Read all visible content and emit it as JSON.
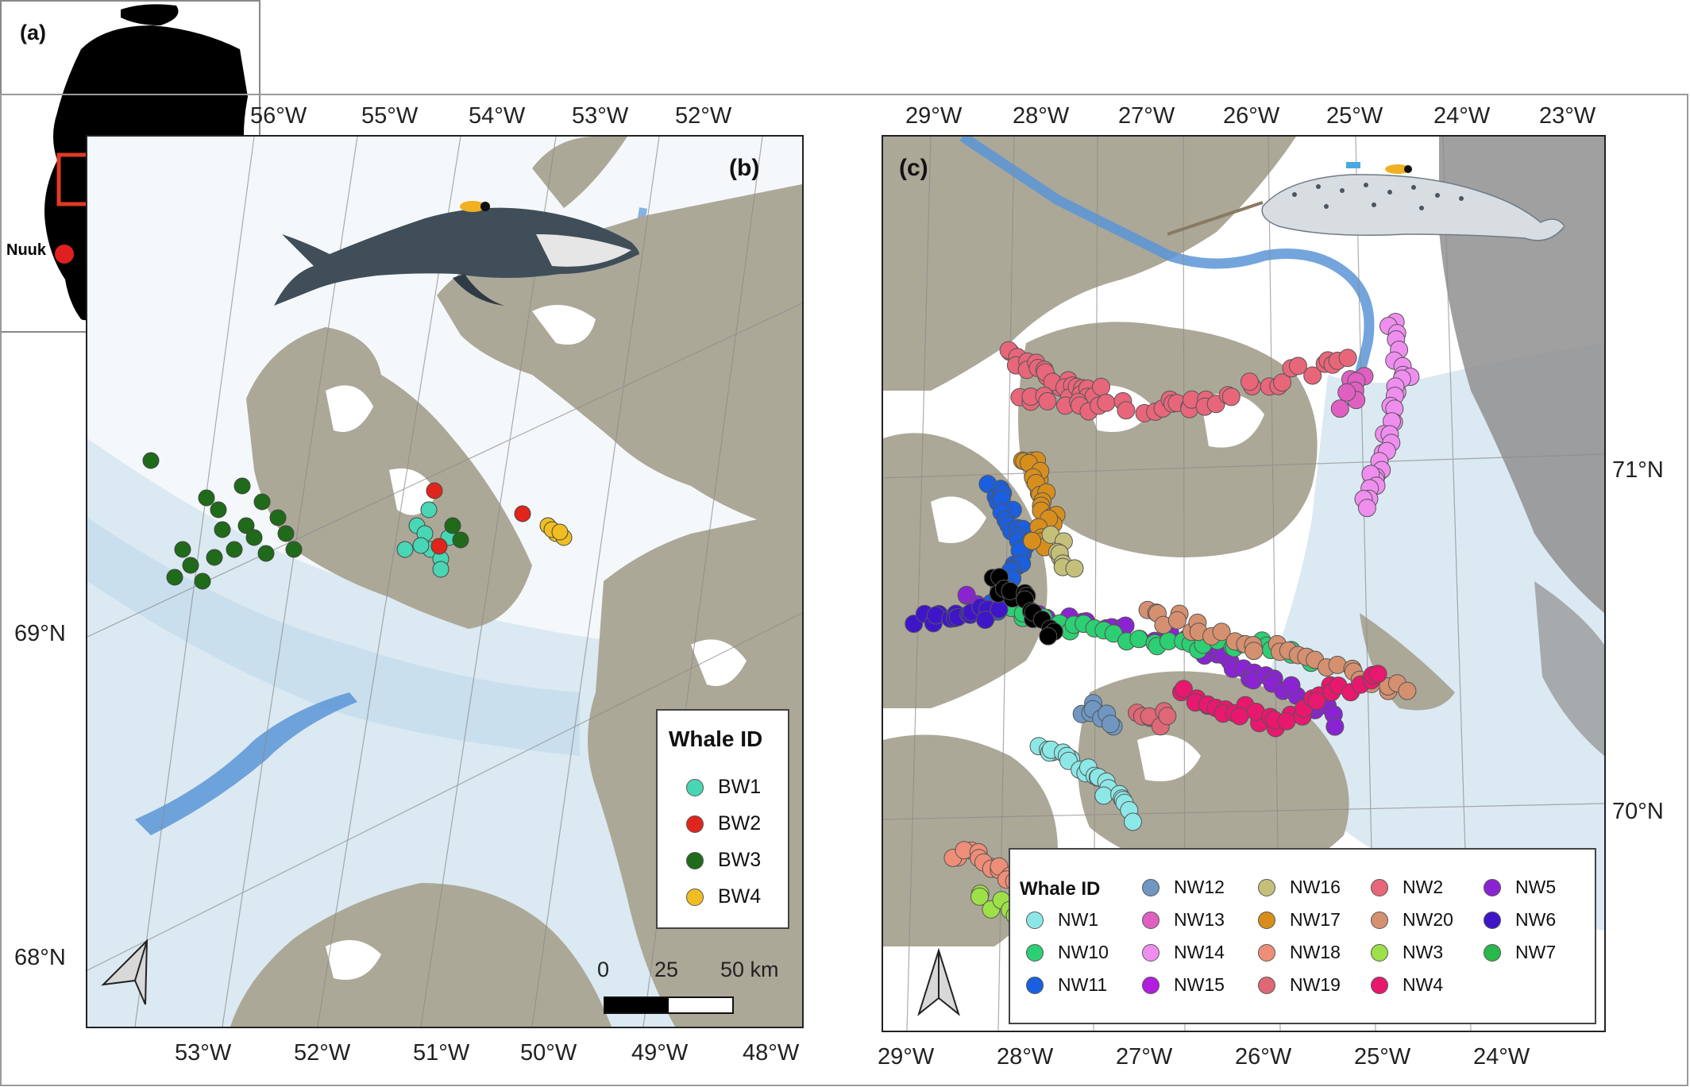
{
  "panel_a": {
    "label": "(a)",
    "city_label": "Nuuk",
    "colors": {
      "land": "#000000",
      "box": "#e03a22",
      "city": "#e02020"
    }
  },
  "panel_b": {
    "label": "(b)",
    "lon_top": [
      "56°W",
      "55°W",
      "54°W",
      "53°W",
      "52°W"
    ],
    "lon_bottom": [
      "53°W",
      "52°W",
      "51°W",
      "50°W",
      "49°W",
      "48°W"
    ],
    "lat_left": [
      "69°N",
      "68°N"
    ],
    "legend": {
      "title": "Whale ID",
      "items": [
        {
          "label": "BW1",
          "color": "#48d6b4"
        },
        {
          "label": "BW2",
          "color": "#e0261c"
        },
        {
          "label": "BW3",
          "color": "#1f6b1a"
        },
        {
          "label": "BW4",
          "color": "#f0bd22"
        }
      ]
    },
    "scale_bar": {
      "labels": [
        "0",
        "25",
        "50 km"
      ]
    },
    "illustration": "bowhead-whale",
    "colors": {
      "land": "#aca898",
      "ice": "#ffffff",
      "shelf": "#cfe3ef",
      "deep": "#5b95d6"
    }
  },
  "panel_c": {
    "label": "(c)",
    "lon_top": [
      "29°W",
      "28°W",
      "27°W",
      "26°W",
      "25°W",
      "24°W",
      "23°W"
    ],
    "lon_bottom": [
      "29°W",
      "28°W",
      "27°W",
      "26°W",
      "25°W",
      "24°W"
    ],
    "lat_right": [
      "71°N",
      "70°N"
    ],
    "legend": {
      "title": "Whale ID",
      "items": [
        {
          "label": "NW1",
          "color": "#8ce8e6"
        },
        {
          "label": "NW10",
          "color": "#2ccf72"
        },
        {
          "label": "NW11",
          "color": "#1a5fe0"
        },
        {
          "label": "NW12",
          "color": "#6f97c2"
        },
        {
          "label": "NW13",
          "color": "#e060c2"
        },
        {
          "label": "NW14",
          "color": "#f08ef0"
        },
        {
          "label": "NW15",
          "color": "#b21ee0"
        },
        {
          "label": "NW16",
          "color": "#c4c07a"
        },
        {
          "label": "NW17",
          "color": "#d88e1c"
        },
        {
          "label": "NW18",
          "color": "#ee8e78"
        },
        {
          "label": "NW19",
          "color": "#de6876"
        },
        {
          "label": "NW2",
          "color": "#e8667a"
        },
        {
          "label": "NW20",
          "color": "#d59070"
        },
        {
          "label": "NW3",
          "color": "#9ee048"
        },
        {
          "label": "NW4",
          "color": "#e8186e"
        },
        {
          "label": "NW5",
          "color": "#8a24d2"
        },
        {
          "label": "NW6",
          "color": "#3e16c8"
        },
        {
          "label": "NW7",
          "color": "#28b84c"
        }
      ]
    },
    "illustration": "narwhal",
    "colors": {
      "land": "#aca898",
      "ice": "#ffffff",
      "shelf": "#d6e8f2",
      "deep": "#5b95d6"
    }
  }
}
